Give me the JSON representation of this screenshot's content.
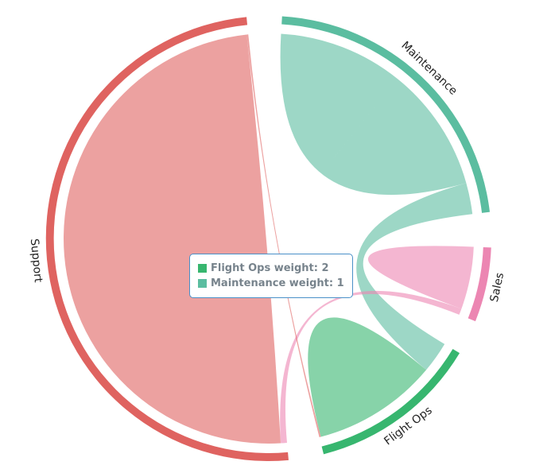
{
  "chart_data": {
    "type": "chord",
    "groups": [
      {
        "name": "Maintenance",
        "color": "#5bbda0"
      },
      {
        "name": "Sales",
        "color": "#ec86b2"
      },
      {
        "name": "Flight Ops",
        "color": "#37b66f"
      },
      {
        "name": "Support",
        "color": "#df6360"
      }
    ],
    "flows": [
      {
        "source": "Maintenance",
        "target": "Maintenance",
        "weight": 4
      },
      {
        "source": "Maintenance",
        "target": "Flight Ops",
        "weight": 1
      },
      {
        "source": "Sales",
        "target": "Sales",
        "weight": 1
      },
      {
        "source": "Sales",
        "target": "Support",
        "weight": 0.2
      },
      {
        "source": "Flight Ops",
        "target": "Flight Ops",
        "weight": 2
      },
      {
        "source": "Support",
        "target": "Support",
        "weight": 10
      },
      {
        "source": "Support",
        "target": "Flight Ops",
        "weight": 0.05
      }
    ]
  },
  "tooltip": {
    "rows": [
      {
        "text": "Flight Ops weight: 2",
        "color": "#37b66f"
      },
      {
        "text": "Maintenance weight: 1",
        "color": "#5bbda0"
      }
    ]
  }
}
